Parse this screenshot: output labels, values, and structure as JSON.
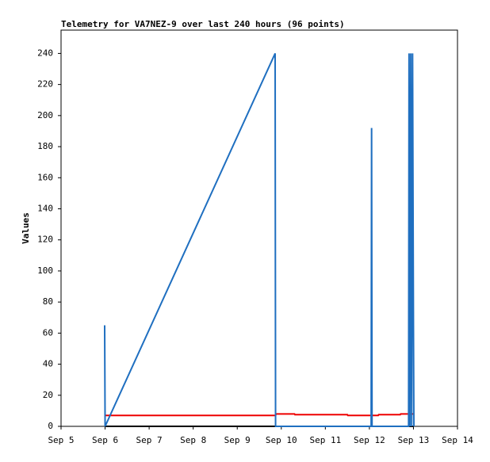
{
  "chart_data": {
    "type": "line",
    "title": "Telemetry for VA7NEZ-9 over last 240 hours (96 points)",
    "y_label": "Values",
    "xlim": [
      5,
      14
    ],
    "xticks": [
      {
        "value": 5,
        "label": "Sep 5"
      },
      {
        "value": 6,
        "label": "Sep 6"
      },
      {
        "value": 7,
        "label": "Sep 7"
      },
      {
        "value": 8,
        "label": "Sep 8"
      },
      {
        "value": 9,
        "label": "Sep 9"
      },
      {
        "value": 10,
        "label": "Sep 10"
      },
      {
        "value": 11,
        "label": "Sep 11"
      },
      {
        "value": 12,
        "label": "Sep 12"
      },
      {
        "value": 13,
        "label": "Sep 13"
      },
      {
        "value": 14,
        "label": "Sep 14"
      }
    ],
    "ylim": [
      0,
      255
    ],
    "yticks": [
      0,
      20,
      40,
      60,
      80,
      100,
      120,
      140,
      160,
      180,
      200,
      220,
      240
    ],
    "grid": false,
    "series": [
      {
        "color": "#000000",
        "x": [
          6.0,
          13.01
        ],
        "values": [
          0,
          0
        ]
      },
      {
        "color": "#ee0000",
        "x": [
          6.0,
          9.87,
          9.88,
          10.3,
          10.31,
          11.5,
          11.51,
          12.2,
          12.21,
          12.7,
          12.71,
          13.0
        ],
        "values": [
          7,
          7,
          8,
          8,
          7.5,
          7.5,
          7,
          7,
          7.5,
          7.5,
          8,
          8
        ]
      },
      {
        "color": "#1f6fc0",
        "x": [
          5.99,
          6.0,
          9.86,
          9.87,
          12.04,
          12.05,
          12.06,
          12.89,
          12.9,
          12.92,
          12.94,
          12.96,
          12.98,
          13.0,
          13.01
        ],
        "values": [
          65,
          0,
          240,
          0,
          0,
          192,
          0,
          0,
          240,
          0,
          240,
          0,
          240,
          65,
          0
        ]
      }
    ]
  }
}
